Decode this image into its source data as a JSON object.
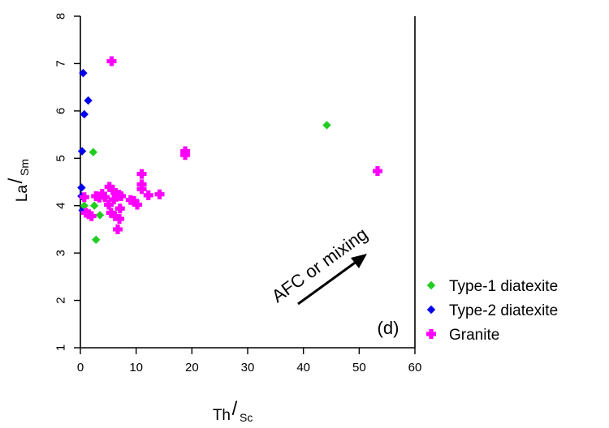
{
  "chart_data": {
    "type": "scatter",
    "title": "",
    "xlabel_main": "Th",
    "xlabel_sub": "Sc",
    "ylabel_main": "La",
    "ylabel_sub": "Sm",
    "xlim": [
      0,
      60
    ],
    "ylim": [
      1,
      8
    ],
    "xticks": [
      "0",
      "10",
      "20",
      "30",
      "40",
      "50",
      "60"
    ],
    "yticks": [
      "1",
      "2",
      "3",
      "4",
      "5",
      "6",
      "7",
      "8"
    ],
    "panel_label": "(d)",
    "annotation": "AFC or mixing",
    "legend_position": "bottom-right",
    "series": [
      {
        "name": "Type-1 diatexite",
        "color": "#22cc22",
        "marker": "diamond",
        "points": [
          [
            44.2,
            5.7
          ],
          [
            2.3,
            5.13
          ],
          [
            0.7,
            4.0
          ],
          [
            2.5,
            4.0
          ],
          [
            3.5,
            3.8
          ],
          [
            2.8,
            3.28
          ]
        ]
      },
      {
        "name": "Type-2 diatexite",
        "color": "#0000ee",
        "marker": "diamond",
        "points": [
          [
            0.5,
            6.8
          ],
          [
            1.4,
            6.22
          ],
          [
            0.7,
            5.93
          ],
          [
            0.3,
            5.15
          ],
          [
            0.2,
            4.38
          ],
          [
            0.2,
            4.2
          ],
          [
            0.4,
            3.9
          ]
        ]
      },
      {
        "name": "Granite",
        "color": "#ff00ff",
        "marker": "cross",
        "points": [
          [
            5.6,
            7.05
          ],
          [
            18.8,
            5.15
          ],
          [
            18.8,
            5.07
          ],
          [
            53.3,
            4.73
          ],
          [
            11.0,
            4.67
          ],
          [
            11.0,
            4.45
          ],
          [
            11.0,
            4.35
          ],
          [
            12.2,
            4.22
          ],
          [
            14.2,
            4.24
          ],
          [
            9.0,
            4.12
          ],
          [
            9.6,
            4.1
          ],
          [
            10.2,
            4.02
          ],
          [
            5.2,
            4.4
          ],
          [
            5.8,
            4.33
          ],
          [
            6.3,
            4.27
          ],
          [
            6.9,
            4.23
          ],
          [
            7.3,
            4.2
          ],
          [
            2.8,
            4.2
          ],
          [
            3.4,
            4.17
          ],
          [
            3.9,
            4.25
          ],
          [
            4.4,
            4.18
          ],
          [
            6.0,
            4.13
          ],
          [
            5.1,
            4.02
          ],
          [
            7.1,
            3.94
          ],
          [
            0.7,
            4.18
          ],
          [
            1.0,
            3.85
          ],
          [
            1.5,
            3.82
          ],
          [
            2.0,
            3.78
          ],
          [
            5.5,
            3.85
          ],
          [
            6.2,
            3.78
          ],
          [
            7.0,
            3.72
          ],
          [
            6.7,
            3.5
          ]
        ]
      }
    ]
  }
}
